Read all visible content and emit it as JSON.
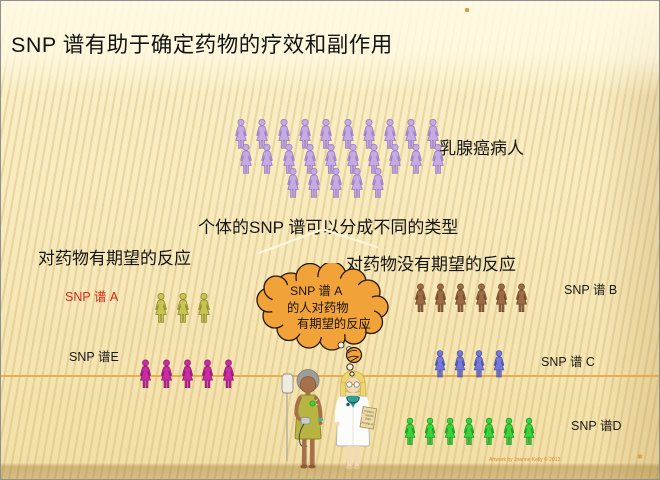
{
  "slide": {
    "title": "SNP 谱有助于确定药物的疗效和副作用",
    "subtitle": "个体的SNP 谱可以分成不同的类型",
    "crowd": {
      "label": "乳腺癌病人",
      "rows": [
        10,
        10,
        5
      ],
      "fill": "#c7a9e4",
      "stroke": "#9a7fc4"
    },
    "left_heading": "对药物有期望的反应",
    "right_heading": "对药物没有期望的反应",
    "groups": [
      {
        "id": "A",
        "label": "SNP 谱 A",
        "label_color": "#cf2a1b",
        "count": 3,
        "fill": "#c9c44f",
        "stroke": "#8f8c33"
      },
      {
        "id": "E",
        "label": "SNP 谱E",
        "label_color": "#1a1a1a",
        "count": 5,
        "fill": "#cb2aa5",
        "stroke": "#8c1d6f"
      },
      {
        "id": "B",
        "label": "SNP 谱 B",
        "label_color": "#1a1a1a",
        "count": 6,
        "fill": "#9c6b44",
        "stroke": "#6f4a2a"
      },
      {
        "id": "C",
        "label": "SNP 谱 C",
        "label_color": "#1a1a1a",
        "count": 4,
        "fill": "#7478da",
        "stroke": "#4d50a8"
      },
      {
        "id": "D",
        "label": "SNP 谱D",
        "label_color": "#1a1a1a",
        "count": 7,
        "fill": "#3bd23b",
        "stroke": "#1d9a1d"
      }
    ],
    "bubble": {
      "lines": [
        "SNP 谱  A",
        "的人对药物",
        "有期望的反应"
      ],
      "fill": "#f1a238"
    },
    "clipboard_lines": [
      "Patient",
      "Results:",
      "SNP",
      "Profile A"
    ],
    "attribution": "Artwork by Joanne Kelly © 2012"
  }
}
